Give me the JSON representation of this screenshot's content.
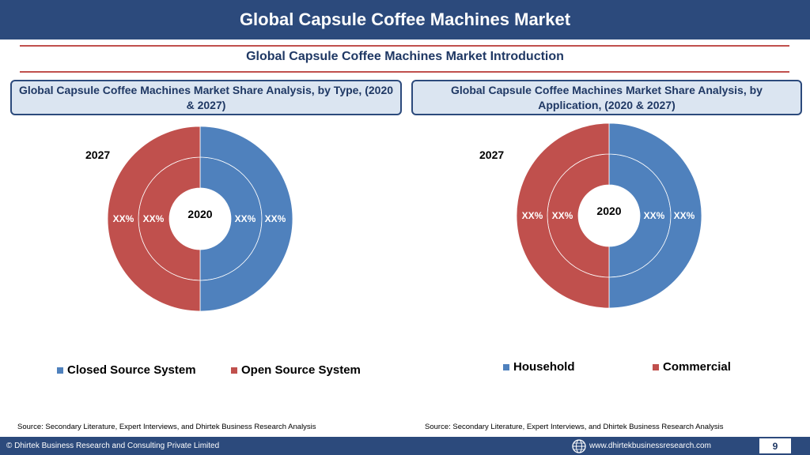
{
  "header": {
    "title": "Global Capsule Coffee Machines Market"
  },
  "intro": {
    "subtitle": "Global Capsule Coffee Machines Market  Introduction"
  },
  "left_box": {
    "title": "Global Capsule Coffee Machines Market  Share Analysis, by Type, (2020 & 2027)"
  },
  "right_box": {
    "title": "Global Capsule Coffee Machines Market  Share Analysis, by Application, (2020 & 2027)"
  },
  "colors": {
    "blue": "#4f81bd",
    "red": "#c0504d",
    "navy": "#2c4a7c"
  },
  "chart_data": [
    {
      "type": "pie",
      "title": "Global Capsule Coffee Machines Market  Share Analysis, by Type, (2020 & 2027)",
      "categories": [
        "Closed Source System",
        "Open Source System"
      ],
      "series": [
        {
          "name": "2020",
          "values": [
            50,
            50
          ],
          "labels": [
            "XX%",
            "XX%"
          ]
        },
        {
          "name": "2027",
          "values": [
            50,
            50
          ],
          "labels": [
            "XX%",
            "XX%"
          ]
        }
      ],
      "legend": "bottom"
    },
    {
      "type": "pie",
      "title": "Global Capsule Coffee Machines Market  Share Analysis, by Application, (2020 & 2027)",
      "categories": [
        "Household",
        "Commercial"
      ],
      "series": [
        {
          "name": "2020",
          "values": [
            50,
            50
          ],
          "labels": [
            "XX%",
            "XX%"
          ]
        },
        {
          "name": "2027",
          "values": [
            50,
            50
          ],
          "labels": [
            "XX%",
            "XX%"
          ]
        }
      ],
      "legend": "bottom"
    }
  ],
  "left_chart": {
    "year_outer": "2027",
    "year_inner": "2020",
    "labels": {
      "outer_left": "XX%",
      "inner_left": "XX%",
      "inner_right": "XX%",
      "outer_right": "XX%"
    },
    "legend": [
      "Closed Source System",
      "Open Source System"
    ]
  },
  "right_chart": {
    "year_outer": "2027",
    "year_inner": "2020",
    "labels": {
      "outer_left": "XX%",
      "inner_left": "XX%",
      "inner_right": "XX%",
      "outer_right": "XX%"
    },
    "legend": [
      "Household",
      "Commercial"
    ]
  },
  "sources": {
    "left": "Source: Secondary Literature, Expert Interviews, and Dhirtek Business Research Analysis",
    "right": "Source: Secondary Literature, Expert Interviews, and Dhirtek Business Research Analysis"
  },
  "footer": {
    "copyright": "© Dhirtek Business Research and Consulting Private Limited",
    "website": "www.dhirtekbusinessresearch.com",
    "page": "9"
  }
}
